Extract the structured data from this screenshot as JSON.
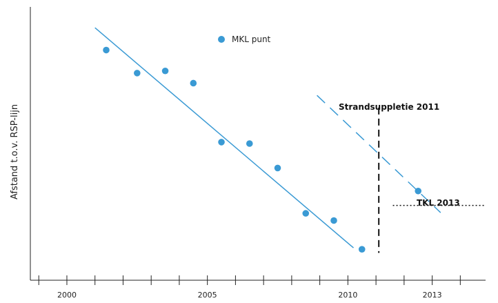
{
  "chart_data": {
    "type": "scatter",
    "title": "",
    "xlabel": "",
    "ylabel": "Afstand t.o.v. RSP-lijn",
    "xlim": [
      1998.7,
      2014.9
    ],
    "ylim": [
      0,
      380
    ],
    "grid": false,
    "legend": {
      "position": "top-center",
      "entries": [
        {
          "name": "MKL punt",
          "color": "#3a9ad4",
          "marker": "circle"
        }
      ]
    },
    "x_ticks": [
      1999,
      2000,
      2001,
      2002,
      2003,
      2004,
      2005,
      2006,
      2007,
      2008,
      2009,
      2010,
      2011,
      2012,
      2013,
      2014
    ],
    "x_tick_labels": [
      {
        "x": 2000,
        "label": "2000"
      },
      {
        "x": 2005,
        "label": "2005"
      },
      {
        "x": 2010,
        "label": "2010"
      },
      {
        "x": 2013,
        "label": "2013"
      }
    ],
    "series": [
      {
        "name": "MKL punt",
        "kind": "points",
        "color": "#3a9ad4",
        "x": [
          2001.4,
          2002.5,
          2003.5,
          2004.5,
          2005.5,
          2006.5,
          2007.5,
          2008.5,
          2009.5,
          2010.5,
          2012.5
        ],
        "y": [
          320,
          288,
          291,
          274,
          192,
          190,
          156,
          93,
          83,
          43,
          124
        ]
      },
      {
        "kind": "trend",
        "style": "solid",
        "color": "#3a9ad4",
        "x": [
          2001.0,
          2010.2
        ],
        "y": [
          351,
          45
        ]
      },
      {
        "kind": "trend",
        "style": "dashed",
        "color": "#3a9ad4",
        "x": [
          2008.9,
          2013.3
        ],
        "y": [
          257,
          94
        ]
      }
    ],
    "annotations": [
      {
        "id": "strandsuppletie",
        "label": "Strandsuppletie 2011",
        "kind": "vline",
        "style": "dashed",
        "color": "#111111",
        "x": 2011.1,
        "y_range": [
          38,
          240
        ]
      },
      {
        "id": "tkl",
        "label": "TKL 2013",
        "kind": "hline",
        "style": "dotted",
        "color": "#111111",
        "y": 104,
        "x_range": [
          2011.6,
          2014.9
        ]
      }
    ]
  }
}
